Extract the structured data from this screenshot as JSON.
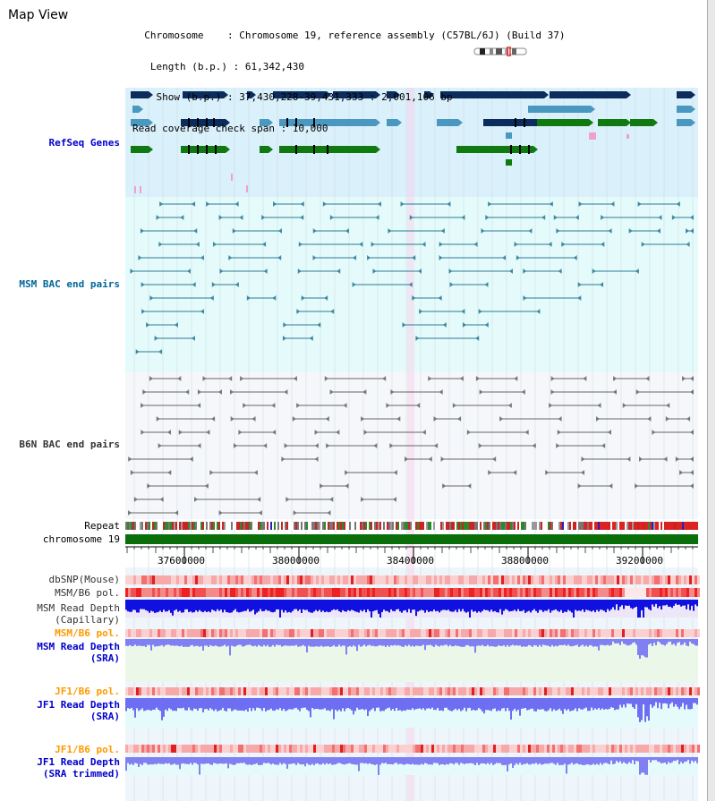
{
  "view": {
    "title": "Map View",
    "info_lines": [
      "  Chromosome    : Chromosome 19, reference assembly (C57BL/6J) (Build 37)",
      "   Length (b.p.) : 61,342,430",
      "    Show (b.p.) : 37,430,228-39,431,333 : 2,001,106 bp",
      "Read coverage check span : 10,000"
    ]
  },
  "tracks": {
    "refseq": {
      "label": "RefSeq Genes",
      "color": "#0000cc"
    },
    "msm_bac": {
      "label": "MSM BAC end pairs",
      "color": "#006699"
    },
    "b6n_bac": {
      "label": "B6N BAC end pairs",
      "color": "#333333"
    },
    "repeat": {
      "label": "Repeat"
    },
    "chromosome": {
      "label": "chromosome 19"
    },
    "dbsnp": {
      "label": "dbSNP(Mouse)"
    },
    "msm_b6_pol_1": {
      "label": "MSM/B6 pol."
    },
    "msm_cap": {
      "label_1": "MSM Read Depth",
      "label_2": "(Capillary)"
    },
    "msm_b6_pol_2": {
      "label": "MSM/B6 pol.",
      "color": "#ff9900"
    },
    "msm_sra": {
      "label_1": "MSM Read Depth",
      "label_2": "(SRA)",
      "color": "#0000cc"
    },
    "jf1_b6_pol_1": {
      "label": "JF1/B6 pol.",
      "color": "#ff9900"
    },
    "jf1_sra": {
      "label_1": "JF1 Read Depth",
      "label_2": "(SRA)",
      "color": "#0000cc"
    },
    "jf1_b6_pol_2": {
      "label": "JF1/B6 pol.",
      "color": "#ff9900"
    },
    "jf1_trim": {
      "label_1": "JF1 Read Depth",
      "label_2": "(SRA trimmed)",
      "color": "#0000cc"
    }
  },
  "axis": {
    "ticks": [
      "37600000",
      "38000000",
      "38400000",
      "38800000",
      "39200000"
    ]
  },
  "colors": {
    "refseq_bg": "#daf0fa",
    "msm_bg": "#e5fbfb",
    "b6n_bg": "#f5f7fa",
    "gene_dark": "#0b2c5c",
    "gene_light": "#4a97c0",
    "gene_green": "#107a10",
    "chrom_green": "#0a6e0a",
    "depth_dark": "#1010e0",
    "depth_light": "#7a7af0"
  }
}
